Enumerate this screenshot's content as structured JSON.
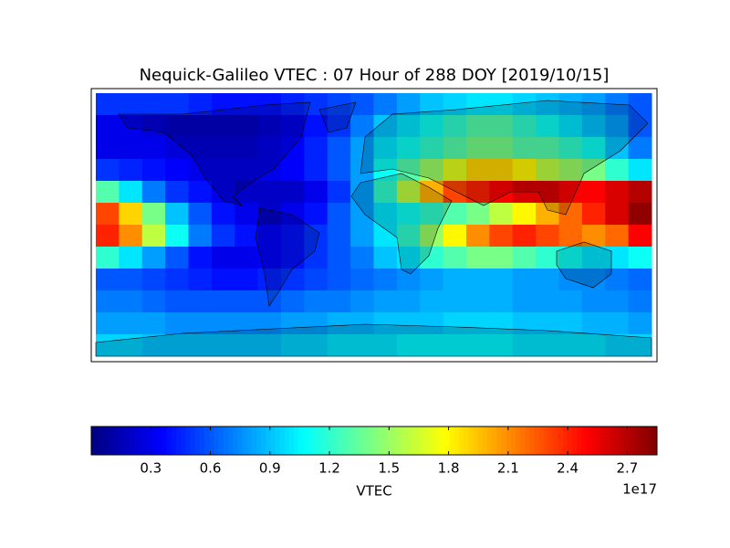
{
  "chart_data": {
    "type": "heatmap",
    "title": "Nequick-Galileo VTEC : 07 Hour of 288 DOY [2019/10/15]",
    "z": [
      [
        0.5,
        0.5,
        0.5,
        0.5,
        0.45,
        0.4,
        0.4,
        0.4,
        0.45,
        0.5,
        0.55,
        0.6,
        0.7,
        0.8,
        0.9,
        0.95,
        1.0,
        1.0,
        0.95,
        0.9,
        0.85,
        0.8,
        0.7,
        0.6
      ],
      [
        0.3,
        0.3,
        0.25,
        0.2,
        0.2,
        0.2,
        0.2,
        0.25,
        0.3,
        0.4,
        0.5,
        0.7,
        0.9,
        1.0,
        1.1,
        1.2,
        1.3,
        1.3,
        1.2,
        1.1,
        1.0,
        0.9,
        0.8,
        0.6
      ],
      [
        0.3,
        0.3,
        0.3,
        0.25,
        0.25,
        0.25,
        0.25,
        0.3,
        0.35,
        0.45,
        0.6,
        0.8,
        1.0,
        1.1,
        1.2,
        1.3,
        1.4,
        1.4,
        1.3,
        1.3,
        1.2,
        1.1,
        0.9,
        0.7
      ],
      [
        0.5,
        0.45,
        0.4,
        0.35,
        0.3,
        0.3,
        0.3,
        0.3,
        0.35,
        0.45,
        0.6,
        0.8,
        1.1,
        1.3,
        1.5,
        1.7,
        1.9,
        1.9,
        1.8,
        1.6,
        1.5,
        1.4,
        1.2,
        1.0
      ],
      [
        1.3,
        1.0,
        0.7,
        0.5,
        0.4,
        0.3,
        0.2,
        0.2,
        0.2,
        0.3,
        0.5,
        0.8,
        1.2,
        1.6,
        2.0,
        2.3,
        2.4,
        2.5,
        2.6,
        2.6,
        2.5,
        2.5,
        2.6,
        2.7
      ],
      [
        2.3,
        1.9,
        1.4,
        0.9,
        0.6,
        0.4,
        0.3,
        0.2,
        0.3,
        0.4,
        0.6,
        0.8,
        1.0,
        1.1,
        1.2,
        1.3,
        1.4,
        1.6,
        1.8,
        2.0,
        2.2,
        2.4,
        2.6,
        2.8
      ],
      [
        2.4,
        2.1,
        1.6,
        1.1,
        0.7,
        0.5,
        0.4,
        0.35,
        0.4,
        0.5,
        0.6,
        0.8,
        1.0,
        1.2,
        1.5,
        1.8,
        2.1,
        2.3,
        2.4,
        2.3,
        2.2,
        2.1,
        2.2,
        2.5
      ],
      [
        1.2,
        1.0,
        0.8,
        0.6,
        0.4,
        0.3,
        0.3,
        0.35,
        0.4,
        0.5,
        0.6,
        0.7,
        0.9,
        1.0,
        1.2,
        1.3,
        1.4,
        1.4,
        1.3,
        1.2,
        1.1,
        1.0,
        1.0,
        1.1
      ],
      [
        0.6,
        0.6,
        0.55,
        0.5,
        0.45,
        0.4,
        0.4,
        0.45,
        0.5,
        0.55,
        0.6,
        0.65,
        0.7,
        0.75,
        0.8,
        0.85,
        0.85,
        0.85,
        0.8,
        0.8,
        0.75,
        0.75,
        0.7,
        0.65
      ],
      [
        0.7,
        0.7,
        0.65,
        0.6,
        0.6,
        0.6,
        0.6,
        0.6,
        0.65,
        0.7,
        0.7,
        0.75,
        0.8,
        0.8,
        0.85,
        0.85,
        0.85,
        0.85,
        0.8,
        0.8,
        0.8,
        0.75,
        0.75,
        0.7
      ],
      [
        0.8,
        0.8,
        0.8,
        0.75,
        0.75,
        0.75,
        0.75,
        0.75,
        0.8,
        0.8,
        0.85,
        0.85,
        0.9,
        0.9,
        0.9,
        0.95,
        0.95,
        0.95,
        0.9,
        0.9,
        0.9,
        0.85,
        0.85,
        0.8
      ],
      [
        0.95,
        0.95,
        0.9,
        0.9,
        0.9,
        0.9,
        0.9,
        0.9,
        0.95,
        0.95,
        1.0,
        1.0,
        1.0,
        1.05,
        1.05,
        1.05,
        1.05,
        1.05,
        1.0,
        1.0,
        1.0,
        1.0,
        0.95,
        0.95
      ]
    ],
    "colormap": "jet",
    "clim": [
      0,
      2.85
    ],
    "colorbar_ticks": [
      0.3,
      0.6,
      0.9,
      1.2,
      1.5,
      1.8,
      2.1,
      2.4,
      2.7
    ],
    "colorbar_label": "VTEC",
    "colorbar_offset": "1e17"
  }
}
